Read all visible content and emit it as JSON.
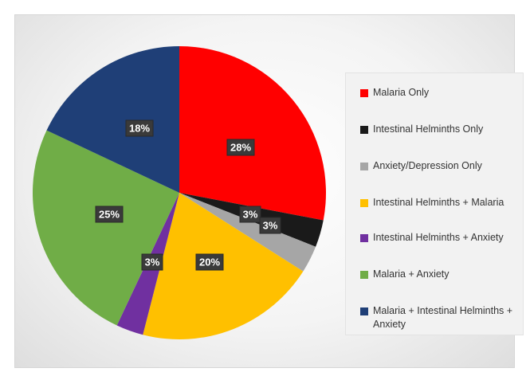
{
  "chart_data": {
    "type": "pie",
    "categories": [
      "Malaria Only",
      "Intestinal Helminths Only",
      "Anxiety/Depression Only",
      "Intestinal Helminths + Malaria",
      "Intestinal Helminths + Anxiety",
      "Malaria + Anxiety",
      "Malaria + Intestinal Helminths + Anxiety"
    ],
    "values": [
      28,
      3,
      3,
      20,
      3,
      25,
      18
    ],
    "data_labels": [
      "28%",
      "3%",
      "3%",
      "20%",
      "3%",
      "25%",
      "18%"
    ],
    "colors": [
      "#ff0000",
      "#1a1a1a",
      "#a6a6a6",
      "#ffc000",
      "#7030a0",
      "#70ad47",
      "#1f3f77"
    ],
    "legend_position": "right",
    "start_angle_deg": 0,
    "direction": "clockwise"
  }
}
